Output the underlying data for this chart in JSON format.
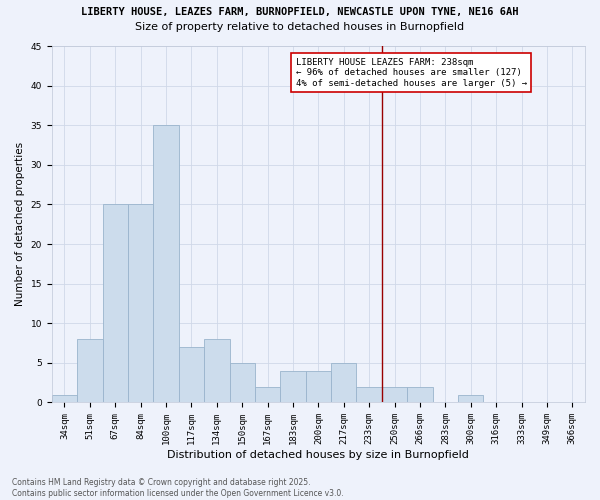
{
  "title_line1": "LIBERTY HOUSE, LEAZES FARM, BURNOPFIELD, NEWCASTLE UPON TYNE, NE16 6AH",
  "title_line2": "Size of property relative to detached houses in Burnopfield",
  "xlabel": "Distribution of detached houses by size in Burnopfield",
  "ylabel": "Number of detached properties",
  "categories": [
    "34sqm",
    "51sqm",
    "67sqm",
    "84sqm",
    "100sqm",
    "117sqm",
    "134sqm",
    "150sqm",
    "167sqm",
    "183sqm",
    "200sqm",
    "217sqm",
    "233sqm",
    "250sqm",
    "266sqm",
    "283sqm",
    "300sqm",
    "316sqm",
    "333sqm",
    "349sqm",
    "366sqm"
  ],
  "values": [
    1,
    8,
    25,
    25,
    35,
    7,
    8,
    5,
    2,
    4,
    4,
    5,
    2,
    2,
    2,
    0,
    1,
    0,
    0,
    0,
    0
  ],
  "bar_color": "#ccdcec",
  "bar_edge_color": "#9ab4cc",
  "grid_color": "#d0d8e8",
  "background_color": "#eef2fb",
  "vline_color": "#990000",
  "annotation_text": "LIBERTY HOUSE LEAZES FARM: 238sqm\n← 96% of detached houses are smaller (127)\n4% of semi-detached houses are larger (5) →",
  "annotation_box_color": "#ffffff",
  "annotation_box_edge_color": "#cc0000",
  "ylim": [
    0,
    45
  ],
  "yticks": [
    0,
    5,
    10,
    15,
    20,
    25,
    30,
    35,
    40,
    45
  ],
  "footer_text": "Contains HM Land Registry data © Crown copyright and database right 2025.\nContains public sector information licensed under the Open Government Licence v3.0.",
  "title_fontsize": 7.5,
  "subtitle_fontsize": 8,
  "xlabel_fontsize": 8,
  "ylabel_fontsize": 7.5,
  "tick_fontsize": 6.5,
  "annotation_fontsize": 6.5,
  "footer_fontsize": 5.5
}
